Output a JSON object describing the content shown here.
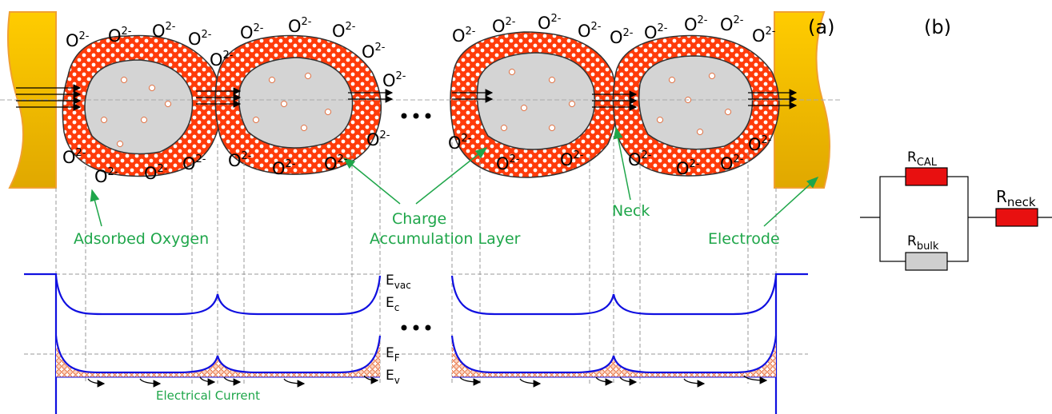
{
  "panel_a": {
    "label": "(a)",
    "oxygen_ion": {
      "base": "O",
      "charge": "2-"
    },
    "annotations": {
      "adsorbed_oxygen": "Adsorbed Oxygen",
      "charge_accumulation_layer": [
        "Charge",
        "Accumulation Layer"
      ],
      "neck": "Neck",
      "electrode": "Electrode",
      "electrical_current": "Electrical Current"
    },
    "bands": {
      "e_vac": {
        "symbol": "E",
        "subscript": "vac"
      },
      "e_c": {
        "symbol": "E",
        "subscript": "c"
      },
      "e_f": {
        "symbol": "E",
        "subscript": "F"
      },
      "e_v": {
        "symbol": "E",
        "subscript": "v"
      }
    }
  },
  "panel_b": {
    "label": "(b)",
    "r_cal": {
      "symbol": "R",
      "subscript": "CAL"
    },
    "r_bulk": {
      "symbol": "R",
      "subscript": "bulk"
    },
    "r_neck": {
      "symbol": "R",
      "subscript": "neck"
    }
  }
}
